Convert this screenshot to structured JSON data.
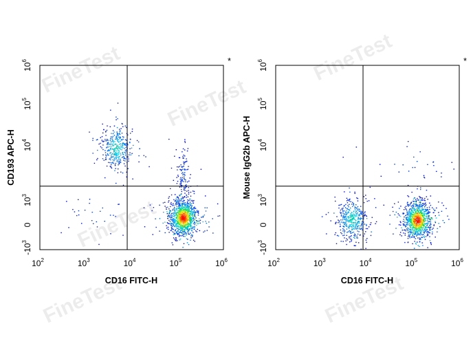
{
  "watermark": "FineTest",
  "chart_data": [
    {
      "type": "scatter",
      "subtype": "flow-cytometry-density-dot-plot",
      "xlabel": "CD16 FITC-H",
      "ylabel": "CD193 APC-H",
      "x_scale": "biexponential",
      "y_scale": "biexponential",
      "xlim": [
        100,
        1000000
      ],
      "ylim": [
        -1000,
        1000000
      ],
      "x_ticks": [
        "10^2",
        "10^3",
        "10^4",
        "10^5",
        "10^6"
      ],
      "y_ticks": [
        "-10^3",
        "0",
        "10^3",
        "10^4",
        "10^5",
        "10^6"
      ],
      "gate": {
        "x": 8000,
        "y": 1800
      },
      "corner_mark": "*",
      "populations": [
        {
          "center": [
            4500,
            9000
          ],
          "count": 380,
          "relative_density": "medium"
        },
        {
          "center": [
            130000,
            300
          ],
          "count": 1100,
          "relative_density": "high"
        },
        {
          "center": [
            130000,
            3000
          ],
          "count": 120,
          "relative_density": "low"
        },
        {
          "center": [
            2000,
            500
          ],
          "count": 30,
          "relative_density": "sparse"
        }
      ]
    },
    {
      "type": "scatter",
      "subtype": "flow-cytometry-density-dot-plot",
      "xlabel": "CD16 FITC-H",
      "ylabel": "Mouse IgG2b APC-H",
      "x_scale": "biexponential",
      "y_scale": "biexponential",
      "xlim": [
        100,
        1000000
      ],
      "ylim": [
        -1000,
        1000000
      ],
      "x_ticks": [
        "10^2",
        "10^3",
        "10^4",
        "10^5",
        "10^6"
      ],
      "y_ticks": [
        "-10^3",
        "0",
        "10^3",
        "10^4",
        "10^5",
        "10^6"
      ],
      "gate": {
        "x": 8000,
        "y": 1800
      },
      "corner_mark": "*",
      "populations": [
        {
          "center": [
            4500,
            250
          ],
          "count": 420,
          "relative_density": "medium"
        },
        {
          "center": [
            120000,
            200
          ],
          "count": 1000,
          "relative_density": "high"
        },
        {
          "center": [
            115000,
            5000
          ],
          "count": 25,
          "relative_density": "sparse"
        }
      ]
    }
  ]
}
